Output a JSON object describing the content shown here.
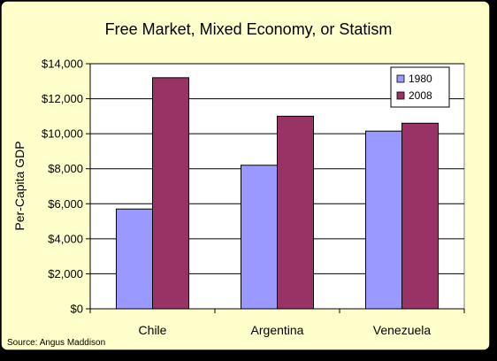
{
  "chart_data": {
    "type": "bar",
    "title": "Free Market, Mixed Economy, or Statism",
    "xlabel": "",
    "ylabel": "Per-Capita GDP",
    "categories": [
      "Chile",
      "Argentina",
      "Venezuela"
    ],
    "series": [
      {
        "name": "1980",
        "values": [
          5700,
          8200,
          10150
        ],
        "color": "#9999ff"
      },
      {
        "name": "2008",
        "values": [
          13200,
          11000,
          10600
        ],
        "color": "#993366"
      }
    ],
    "ylim": [
      0,
      14000
    ],
    "yticks": [
      0,
      2000,
      4000,
      6000,
      8000,
      10000,
      12000,
      14000
    ],
    "ytick_labels": [
      "$0",
      "$2,000",
      "$4,000",
      "$6,000",
      "$8,000",
      "$10,000",
      "$12,000",
      "$14,000"
    ],
    "grid": true,
    "legend": "top-right",
    "source": "Source: Angus Maddison",
    "colors": {
      "frame_bg": "#ffffcc",
      "plot_bg": "#ffffff",
      "grid": "#000000",
      "outer_bg": "#000000"
    }
  }
}
